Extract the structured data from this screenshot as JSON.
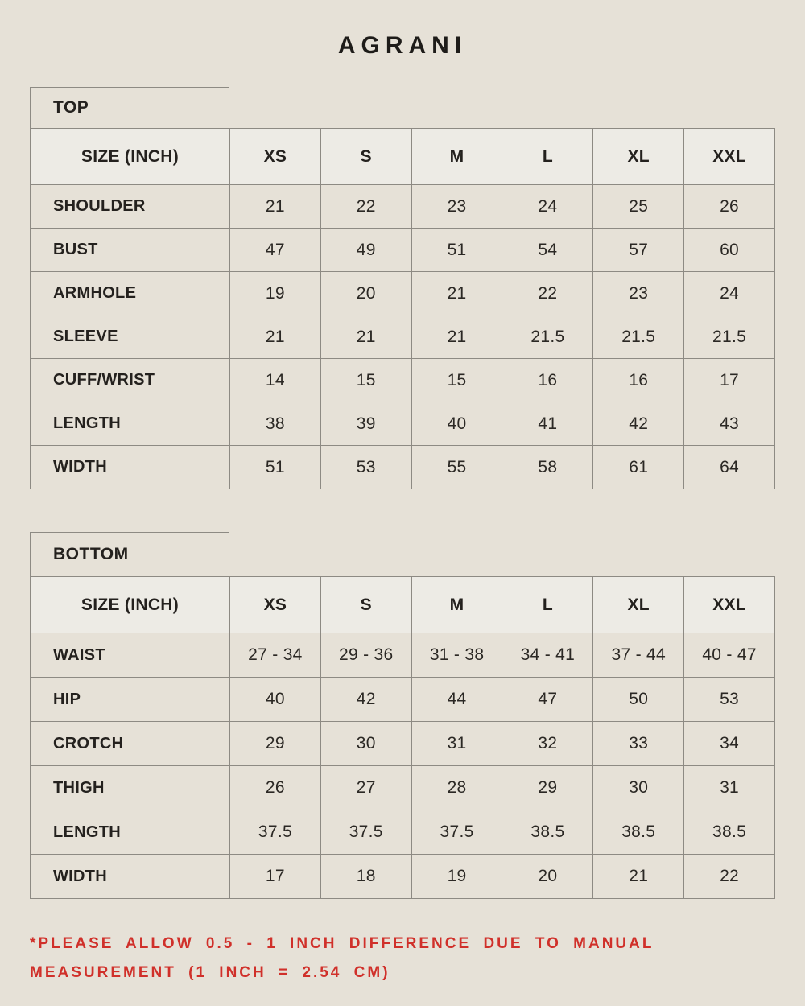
{
  "title": "AGRANI",
  "top_table": {
    "label": "TOP",
    "header": [
      "SIZE (INCH)",
      "XS",
      "S",
      "M",
      "L",
      "XL",
      "XXL"
    ],
    "rows": [
      {
        "label": "SHOULDER",
        "values": [
          "21",
          "22",
          "23",
          "24",
          "25",
          "26"
        ]
      },
      {
        "label": "BUST",
        "values": [
          "47",
          "49",
          "51",
          "54",
          "57",
          "60"
        ]
      },
      {
        "label": "ARMHOLE",
        "values": [
          "19",
          "20",
          "21",
          "22",
          "23",
          "24"
        ]
      },
      {
        "label": "SLEEVE",
        "values": [
          "21",
          "21",
          "21",
          "21.5",
          "21.5",
          "21.5"
        ]
      },
      {
        "label": "CUFF/WRIST",
        "values": [
          "14",
          "15",
          "15",
          "16",
          "16",
          "17"
        ]
      },
      {
        "label": "LENGTH",
        "values": [
          "38",
          "39",
          "40",
          "41",
          "42",
          "43"
        ]
      },
      {
        "label": "WIDTH",
        "values": [
          "51",
          "53",
          "55",
          "58",
          "61",
          "64"
        ]
      }
    ]
  },
  "bottom_table": {
    "label": "BOTTOM",
    "header": [
      "SIZE (INCH)",
      "XS",
      "S",
      "M",
      "L",
      "XL",
      "XXL"
    ],
    "rows": [
      {
        "label": "WAIST",
        "values": [
          "27 - 34",
          "29 - 36",
          "31 - 38",
          "34 - 41",
          "37 - 44",
          "40 - 47"
        ]
      },
      {
        "label": "HIP",
        "values": [
          "40",
          "42",
          "44",
          "47",
          "50",
          "53"
        ]
      },
      {
        "label": "CROTCH",
        "values": [
          "29",
          "30",
          "31",
          "32",
          "33",
          "34"
        ]
      },
      {
        "label": "THIGH",
        "values": [
          "26",
          "27",
          "28",
          "29",
          "30",
          "31"
        ]
      },
      {
        "label": "LENGTH",
        "values": [
          "37.5",
          "37.5",
          "37.5",
          "38.5",
          "38.5",
          "38.5"
        ]
      },
      {
        "label": "WIDTH",
        "values": [
          "17",
          "18",
          "19",
          "20",
          "21",
          "22"
        ]
      }
    ]
  },
  "footnote": "*PLEASE ALLOW 0.5 - 1 INCH DIFFERENCE DUE TO MANUAL MEASUREMENT (1 INCH = 2.54 CM)",
  "colors": {
    "background": "#e6e1d7",
    "header_cell": "#edebe5",
    "border": "#8d8a83",
    "text": "#24211e",
    "accent_red": "#d0302a"
  }
}
